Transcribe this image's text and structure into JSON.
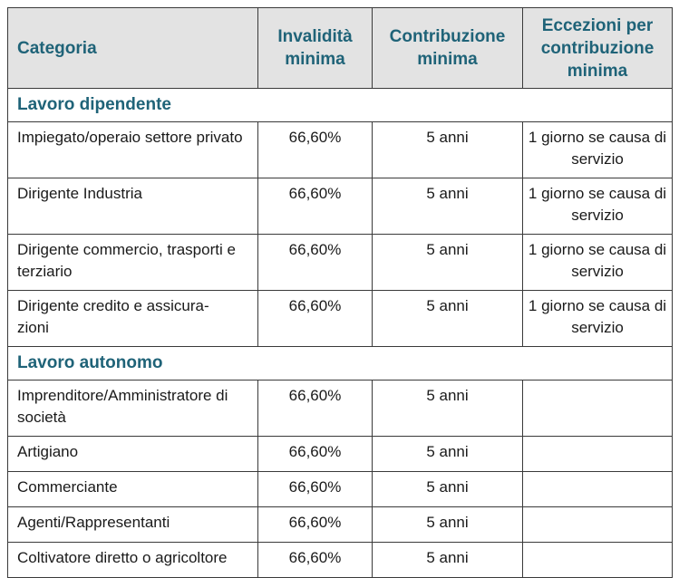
{
  "header": {
    "categoria": "Categoria",
    "invalidita": "Invalidità minima",
    "contribuzione": "Contribuzione minima",
    "eccezioni": "Eccezioni per contribuzione minima"
  },
  "sections": [
    {
      "title": "Lavoro dipendente",
      "rows": [
        {
          "categoria": "Impiegato/operaio settore privato",
          "invalidita": "66,60%",
          "contribuzione": "5 anni",
          "eccezioni": "1 giorno se causa di servizio"
        },
        {
          "categoria": "Dirigente Industria",
          "invalidita": "66,60%",
          "contribuzione": "5 anni",
          "eccezioni": "1 giorno se causa di servizio"
        },
        {
          "categoria": "Dirigente commercio, trasporti e terziario",
          "invalidita": "66,60%",
          "contribuzione": "5 anni",
          "eccezioni": "1 giorno se causa di servizio"
        },
        {
          "categoria": "Dirigente credito e assicura-zioni",
          "invalidita": "66,60%",
          "contribuzione": "5 anni",
          "eccezioni": "1 giorno se causa di servizio"
        }
      ]
    },
    {
      "title": "Lavoro autonomo",
      "rows": [
        {
          "categoria": "Imprenditore/Amministratore di società",
          "invalidita": "66,60%",
          "contribuzione": "5 anni",
          "eccezioni": ""
        },
        {
          "categoria": "Artigiano",
          "invalidita": "66,60%",
          "contribuzione": "5 anni",
          "eccezioni": ""
        },
        {
          "categoria": "Commerciante",
          "invalidita": "66,60%",
          "contribuzione": "5 anni",
          "eccezioni": ""
        },
        {
          "categoria": "Agenti/Rappresentanti",
          "invalidita": "66,60%",
          "contribuzione": "5 anni",
          "eccezioni": ""
        },
        {
          "categoria": "Coltivatore diretto o agricoltore",
          "invalidita": "66,60%",
          "contribuzione": "5 anni",
          "eccezioni": ""
        }
      ]
    }
  ]
}
